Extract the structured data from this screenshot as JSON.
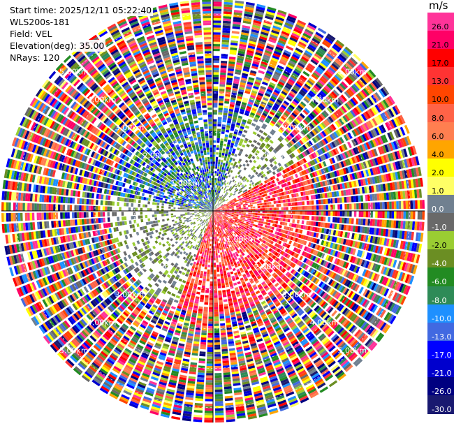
{
  "header": {
    "start_time": "Start time: 2025/12/11 05:22:40",
    "station": "WLS200s-181",
    "field": "Field: VEL",
    "elevation": "Elevation(deg): 35.00",
    "nrays": "NRays: 120"
  },
  "colorbar": {
    "unit": "m/s",
    "ticks": [
      "26.0",
      "21.0",
      "17.0",
      "13.0",
      "10.0",
      "8.0",
      "6.0",
      "4.0",
      "2.0",
      "1.0",
      "0.0",
      "-1.0",
      "-2.0",
      "-4.0",
      "-6.0",
      "-8.0",
      "-10.0",
      "-13.0",
      "-17.0",
      "-21.0",
      "-26.0",
      "-30.0"
    ],
    "colors": [
      "#ff3399",
      "#ff0066",
      "#ff0000",
      "#ff3333",
      "#ff4500",
      "#ff6347",
      "#ff7f50",
      "#ffa500",
      "#ffff00",
      "#ffff66",
      "#708090",
      "#696969",
      "#9acd32",
      "#6b8e23",
      "#228b22",
      "#2e8b57",
      "#1e90ff",
      "#4169e1",
      "#0000ff",
      "#0000cd",
      "#000080",
      "#191970"
    ]
  },
  "chart_data": {
    "type": "heatmap",
    "projection": "polar PPI",
    "rays": 120,
    "range_labels": [
      "1.00km",
      "2.00km",
      "3.00km",
      "4.00km",
      "5.00km"
    ],
    "range_label_count_per_ring": 4,
    "near_field_pattern": {
      "note": "Positive velocities (red/orange/pink) dominate the east-southeast sector out to about 2.5 km; negative velocities (blue) dominate north and west near the center; beyond ~2.5 km the field is noise of all colour classes.",
      "positive_sector_deg": [
        60,
        200
      ],
      "negative_sector_deg": [
        280,
        20
      ],
      "clean_range_km": 2.5
    },
    "outer_range_km": 5.0
  }
}
